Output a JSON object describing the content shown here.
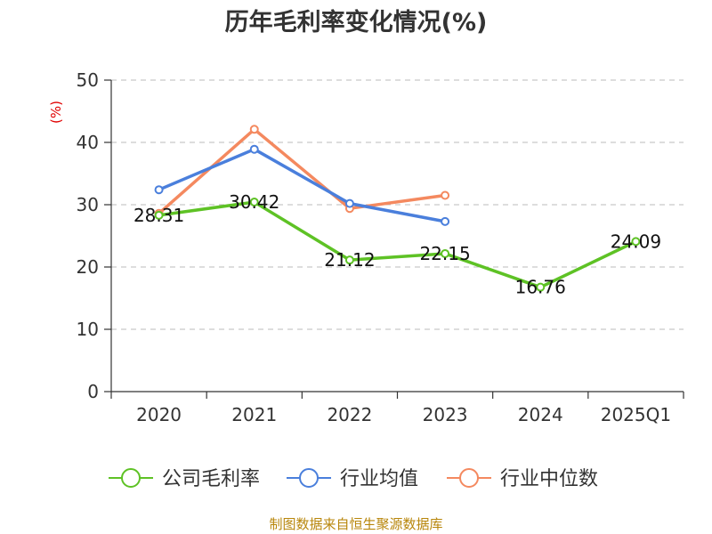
{
  "chart_data": {
    "type": "line",
    "title": "历年毛利率变化情况(%)",
    "ylabel": "(%)",
    "xlabel": "",
    "ylim": [
      0,
      50
    ],
    "yticks": [
      "0",
      "10",
      "20",
      "30",
      "40",
      "50"
    ],
    "categories": [
      "2020",
      "2021",
      "2022",
      "2023",
      "2024",
      "2025Q1"
    ],
    "grid": true,
    "legend": "bottom",
    "series": [
      {
        "name": "公司毛利率",
        "color": "#5ec225",
        "values": [
          28.31,
          30.42,
          21.12,
          22.15,
          16.76,
          24.09
        ],
        "labels": [
          "28.31",
          "30.42",
          "21.12",
          "22.15",
          "16.76",
          "24.09"
        ]
      },
      {
        "name": "行业均值",
        "color": "#4a7fdc",
        "values": [
          32.4,
          38.9,
          30.2,
          27.3,
          null,
          null
        ]
      },
      {
        "name": "行业中位数",
        "color": "#f4895f",
        "values": [
          28.6,
          42.1,
          29.4,
          31.5,
          null,
          null
        ]
      }
    ]
  },
  "source": "制图数据来自恒生聚源数据库"
}
